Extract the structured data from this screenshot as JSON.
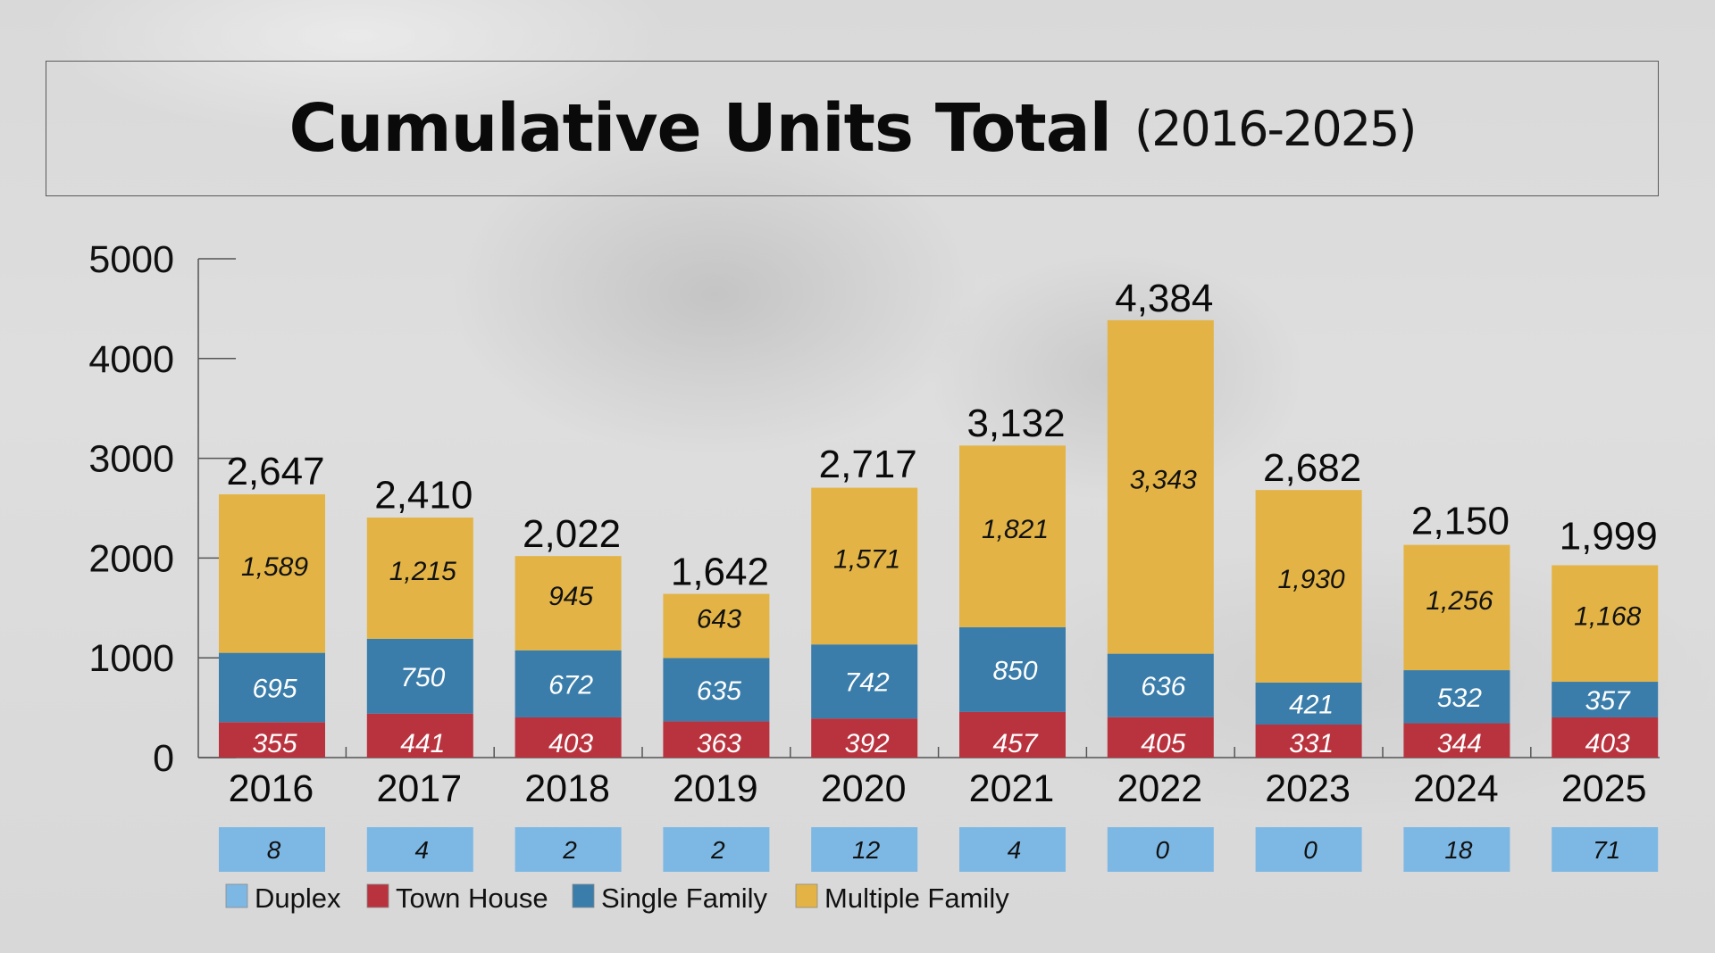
{
  "title": {
    "main": "Cumulative Units Total",
    "sub": "(2016-2025)"
  },
  "colors": {
    "duplex": "#7DB8E4",
    "town_house": "#B9333E",
    "single_family": "#3A7DAA",
    "multiple_family": "#E3B445",
    "axis": "#555555"
  },
  "chart_data": {
    "type": "bar",
    "stacked": true,
    "title": "Cumulative Units Total (2016-2025)",
    "xlabel": "",
    "ylabel": "",
    "ylim": [
      0,
      5000
    ],
    "yticks": [
      0,
      1000,
      2000,
      3000,
      4000,
      5000
    ],
    "grid": false,
    "legend_position": "bottom-left",
    "categories": [
      "2016",
      "2017",
      "2018",
      "2019",
      "2020",
      "2021",
      "2022",
      "2023",
      "2024",
      "2025"
    ],
    "series": [
      {
        "name": "Town House",
        "color_key": "town_house",
        "values": [
          355,
          441,
          403,
          363,
          392,
          457,
          405,
          331,
          344,
          403
        ],
        "labels": [
          "355",
          "441",
          "403",
          "363",
          "392",
          "457",
          "405",
          "331",
          "344",
          "403"
        ]
      },
      {
        "name": "Single Family",
        "color_key": "single_family",
        "values": [
          695,
          750,
          672,
          635,
          742,
          850,
          636,
          421,
          532,
          357
        ],
        "labels": [
          "695",
          "750",
          "672",
          "635",
          "742",
          "850",
          "636",
          "421",
          "532",
          "357"
        ]
      },
      {
        "name": "Multiple Family",
        "color_key": "multiple_family",
        "values": [
          1589,
          1215,
          945,
          643,
          1571,
          1821,
          3343,
          1930,
          1256,
          1168
        ],
        "labels": [
          "1,589",
          "1,215",
          "945",
          "643",
          "1,571",
          "1,821",
          "3,343",
          "1,930",
          "1,256",
          "1,168"
        ]
      }
    ],
    "totals": [
      2647,
      2410,
      2022,
      1642,
      2717,
      3132,
      4384,
      2682,
      2150,
      1999
    ],
    "total_labels": [
      "2,647",
      "2,410",
      "2,022",
      "1,642",
      "2,717",
      "3,132",
      "4,384",
      "2,682",
      "2,150",
      "1,999"
    ],
    "duplex": {
      "name": "Duplex",
      "color_key": "duplex",
      "values": [
        8,
        4,
        2,
        2,
        12,
        4,
        0,
        0,
        18,
        71
      ],
      "labels": [
        "8",
        "4",
        "2",
        "2",
        "12",
        "4",
        "0",
        "0",
        "18",
        "71"
      ]
    },
    "legend": [
      {
        "label": "Duplex",
        "color_key": "duplex"
      },
      {
        "label": "Town House",
        "color_key": "town_house"
      },
      {
        "label": "Single Family",
        "color_key": "single_family"
      },
      {
        "label": "Multiple Family",
        "color_key": "multiple_family"
      }
    ]
  }
}
